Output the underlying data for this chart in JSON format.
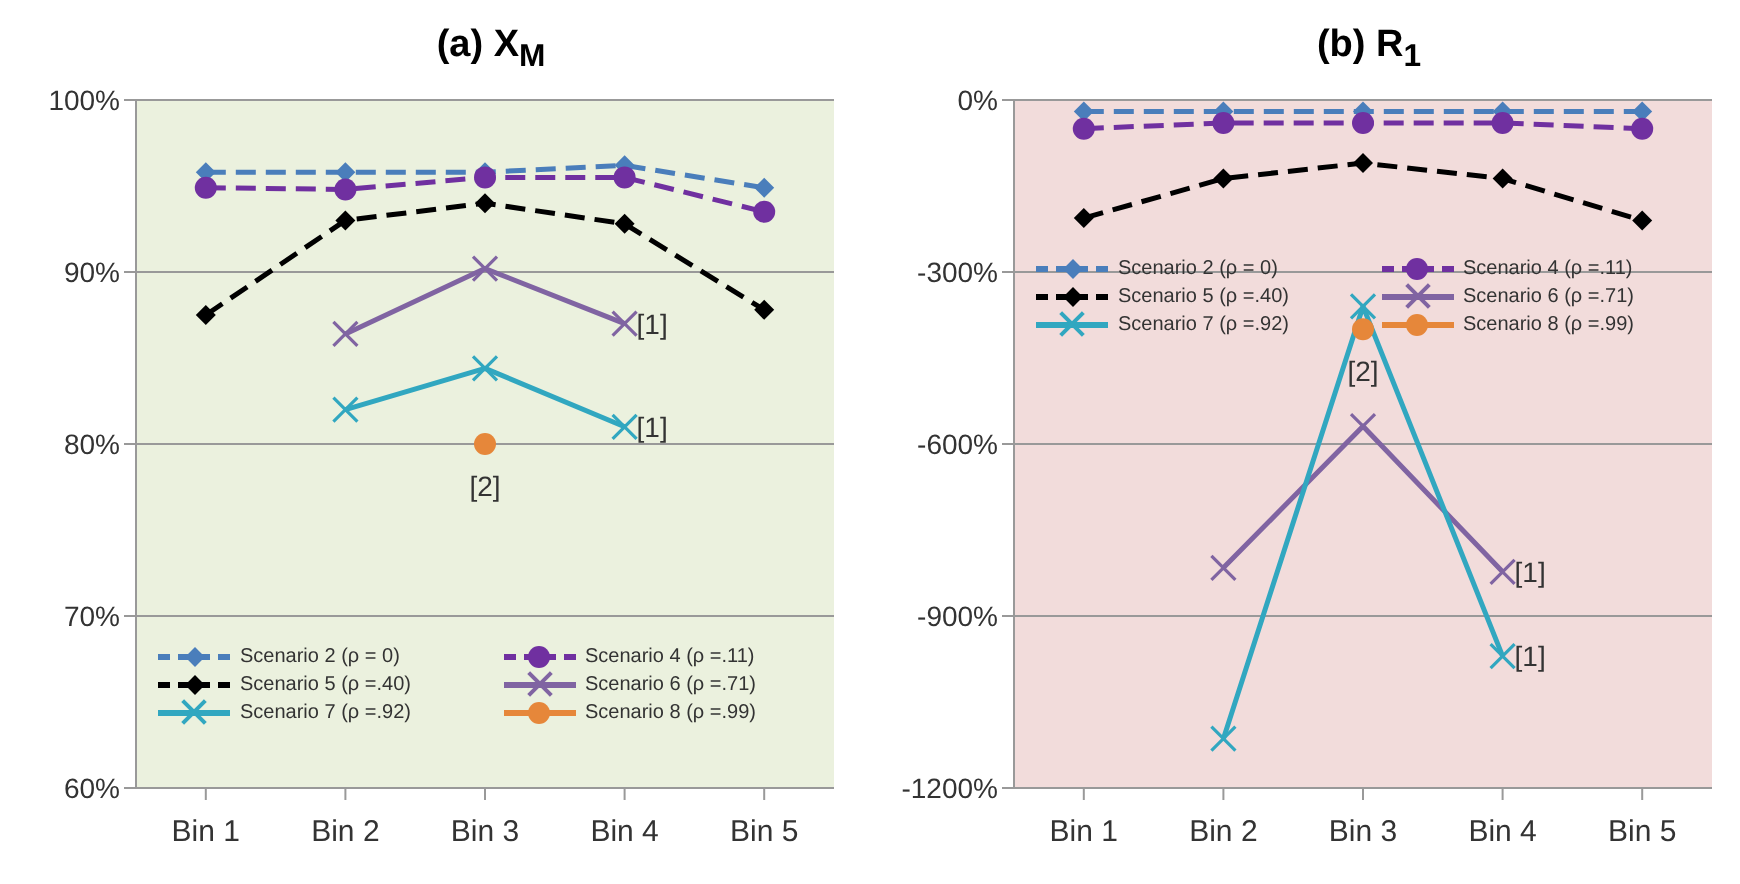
{
  "chart_data": [
    {
      "type": "line",
      "title": "(a)  X$_{M}$",
      "categories": [
        "Bin 1",
        "Bin 2",
        "Bin 3",
        "Bin 4",
        "Bin 5"
      ],
      "ylim": [
        60,
        100
      ],
      "yticks": [
        {
          "value": 60,
          "label": "60%"
        },
        {
          "value": 70,
          "label": "70%"
        },
        {
          "value": 80,
          "label": "80%"
        },
        {
          "value": 90,
          "label": "90%"
        },
        {
          "value": 100,
          "label": "100%"
        }
      ],
      "grid": "y",
      "legend": "bottom",
      "series": [
        {
          "name": "Scenario 2 (ρ = 0)",
          "color": "#4a7ebb",
          "marker": "diamond",
          "line_style": "dashed",
          "values": [
            95.8,
            95.8,
            95.8,
            96.2,
            94.9
          ]
        },
        {
          "name": "Scenario 4 (ρ =.11)",
          "color": "#7030a0",
          "marker": "circle",
          "line_style": "dashed",
          "values": [
            94.9,
            94.8,
            95.5,
            95.5,
            93.5
          ]
        },
        {
          "name": "Scenario 5 (ρ =.40)",
          "color": "#000000",
          "marker": "diamond",
          "line_style": "dashed",
          "values": [
            87.5,
            93.0,
            94.0,
            92.8,
            87.8
          ]
        },
        {
          "name": "Scenario 6 (ρ =.71)",
          "color": "#8064a2",
          "marker": "cross",
          "line_style": "solid",
          "values": [
            null,
            86.4,
            90.2,
            87.0,
            null
          ]
        },
        {
          "name": "Scenario 7 (ρ =.92)",
          "color": "#31a7c0",
          "marker": "cross",
          "line_style": "solid",
          "values": [
            null,
            82.0,
            84.4,
            81.0,
            null
          ]
        },
        {
          "name": "Scenario 8 (ρ =.99)",
          "color": "#e6873a",
          "marker": "circle",
          "line_style": "solid",
          "values": [
            null,
            null,
            80.0,
            null,
            null
          ]
        }
      ],
      "annotations": [
        {
          "text": "[1]",
          "x": "Bin 4",
          "y": 87.0
        },
        {
          "text": "[1]",
          "x": "Bin 4",
          "y": 81.0
        },
        {
          "text": "[2]",
          "x": "Bin 3",
          "y": 80.0
        }
      ]
    },
    {
      "type": "line",
      "title": "(b)  R$_{1}$",
      "categories": [
        "Bin 1",
        "Bin 2",
        "Bin 3",
        "Bin 4",
        "Bin 5"
      ],
      "ylim": [
        -1200,
        0
      ],
      "yticks": [
        {
          "value": -1200,
          "label": "-1200%"
        },
        {
          "value": -900,
          "label": "-900%"
        },
        {
          "value": -600,
          "label": "-600%"
        },
        {
          "value": -300,
          "label": "-300%"
        },
        {
          "value": 0,
          "label": "0%"
        }
      ],
      "grid": "y",
      "legend": "top",
      "series": [
        {
          "name": "Scenario 2 (ρ = 0)",
          "color": "#4a7ebb",
          "marker": "diamond",
          "line_style": "dashed",
          "values": [
            -20,
            -20,
            -20,
            -20,
            -20
          ]
        },
        {
          "name": "Scenario 4 (ρ =.11)",
          "color": "#7030a0",
          "marker": "circle",
          "line_style": "dashed",
          "values": [
            -50,
            -40,
            -40,
            -40,
            -50
          ]
        },
        {
          "name": "Scenario 5 (ρ =.40)",
          "color": "#000000",
          "marker": "diamond",
          "line_style": "dashed",
          "values": [
            -206,
            -137,
            -110,
            -137,
            -210
          ]
        },
        {
          "name": "Scenario 6 (ρ =.71)",
          "color": "#8064a2",
          "marker": "cross",
          "line_style": "solid",
          "values": [
            null,
            -816,
            -569,
            -823,
            null
          ]
        },
        {
          "name": "Scenario 7 (ρ =.92)",
          "color": "#31a7c0",
          "marker": "cross",
          "line_style": "solid",
          "values": [
            null,
            -1114,
            -360,
            -970,
            null
          ]
        },
        {
          "name": "Scenario 8 (ρ =.99)",
          "color": "#e6873a",
          "marker": "circle",
          "line_style": "solid",
          "values": [
            null,
            null,
            -400,
            null,
            null
          ]
        }
      ],
      "annotations": [
        {
          "text": "[1]",
          "x": "Bin 4",
          "y": -823
        },
        {
          "text": "[1]",
          "x": "Bin 4",
          "y": -970
        },
        {
          "text": "[2]",
          "x": "Bin 3",
          "y": -400
        }
      ]
    }
  ]
}
